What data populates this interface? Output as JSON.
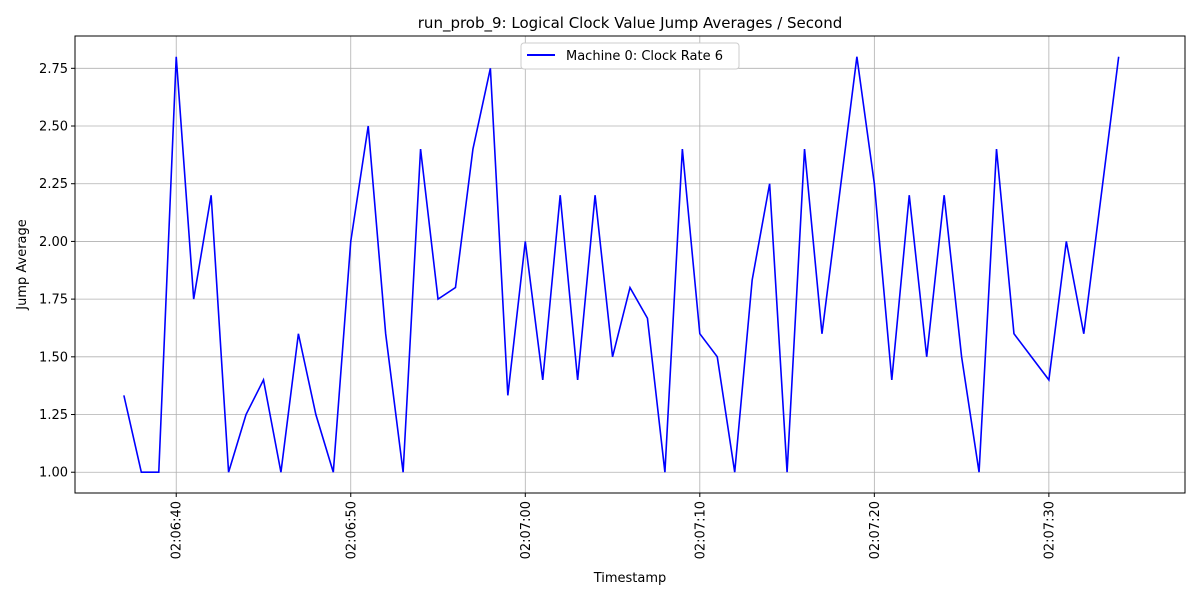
{
  "chart_data": {
    "type": "line",
    "title": "run_prob_9: Logical Clock Value Jump Averages / Second",
    "xlabel": "Timestamp",
    "ylabel": "Jump Average",
    "xlim": [
      "02:06:34.2",
      "02:07:37.8"
    ],
    "ylim": [
      0.91,
      2.89
    ],
    "grid": true,
    "legend": "top-center",
    "x_tick_labels": [
      "02:06:40",
      "02:06:50",
      "02:07:00",
      "02:07:10",
      "02:07:20",
      "02:07:30"
    ],
    "y_tick_labels": [
      "1.00",
      "1.25",
      "1.50",
      "1.75",
      "2.00",
      "2.25",
      "2.50",
      "2.75"
    ],
    "series": [
      {
        "name": "Machine 0: Clock Rate 6",
        "color": "#0000ff",
        "x": [
          "02:06:37",
          "02:06:38",
          "02:06:39",
          "02:06:40",
          "02:06:41",
          "02:06:42",
          "02:06:43",
          "02:06:44",
          "02:06:45",
          "02:06:46",
          "02:06:47",
          "02:06:48",
          "02:06:49",
          "02:06:50",
          "02:06:51",
          "02:06:52",
          "02:06:53",
          "02:06:54",
          "02:06:55",
          "02:06:56",
          "02:06:57",
          "02:06:58",
          "02:06:59",
          "02:07:00",
          "02:07:01",
          "02:07:02",
          "02:07:03",
          "02:07:04",
          "02:07:05",
          "02:07:06",
          "02:07:07",
          "02:07:08",
          "02:07:09",
          "02:07:10",
          "02:07:11",
          "02:07:12",
          "02:07:13",
          "02:07:14",
          "02:07:15",
          "02:07:16",
          "02:07:17",
          "02:07:18",
          "02:07:19",
          "02:07:20",
          "02:07:21",
          "02:07:22",
          "02:07:23",
          "02:07:24",
          "02:07:25",
          "02:07:26",
          "02:07:27",
          "02:07:28",
          "02:07:30",
          "02:07:31",
          "02:07:32",
          "02:07:34"
        ],
        "values": [
          1.333,
          1.0,
          1.0,
          2.8,
          1.75,
          2.2,
          1.0,
          1.25,
          1.4,
          1.0,
          1.6,
          1.25,
          1.0,
          2.0,
          2.5,
          1.6,
          1.0,
          2.4,
          1.75,
          1.8,
          2.4,
          2.75,
          1.333,
          2.0,
          1.4,
          2.2,
          1.4,
          2.2,
          1.5,
          1.8,
          1.667,
          1.0,
          2.4,
          1.6,
          1.5,
          1.0,
          1.833,
          2.25,
          1.0,
          2.4,
          1.6,
          2.2,
          2.8,
          2.25,
          1.4,
          2.2,
          1.5,
          2.2,
          1.5,
          1.0,
          2.4,
          1.6,
          1.4,
          2.0,
          1.6,
          2.8
        ]
      }
    ]
  }
}
